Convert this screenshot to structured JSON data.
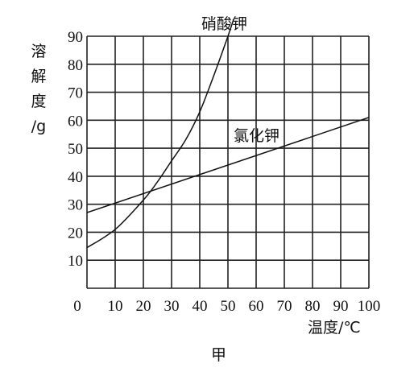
{
  "chart_data": {
    "type": "line",
    "ylabel": "溶解度/g",
    "xlabel": "温度/℃",
    "caption": "甲",
    "x_ticks": [
      "0",
      "10",
      "20",
      "30",
      "40",
      "50",
      "60",
      "70",
      "80",
      "90",
      "100"
    ],
    "y_ticks": [
      "10",
      "20",
      "30",
      "40",
      "50",
      "60",
      "70",
      "80",
      "90"
    ],
    "xlim": [
      0,
      100
    ],
    "ylim": [
      0,
      90
    ],
    "grid": true,
    "series": [
      {
        "name": "硝酸钾",
        "x": [
          0,
          10,
          20,
          25,
          30,
          35,
          40,
          45,
          50,
          52
        ],
        "y": [
          14.5,
          21,
          31.5,
          38,
          45.5,
          53,
          63,
          76,
          90,
          96
        ]
      },
      {
        "name": "氯化钾",
        "x": [
          0,
          100
        ],
        "y": [
          27,
          61
        ]
      }
    ]
  }
}
